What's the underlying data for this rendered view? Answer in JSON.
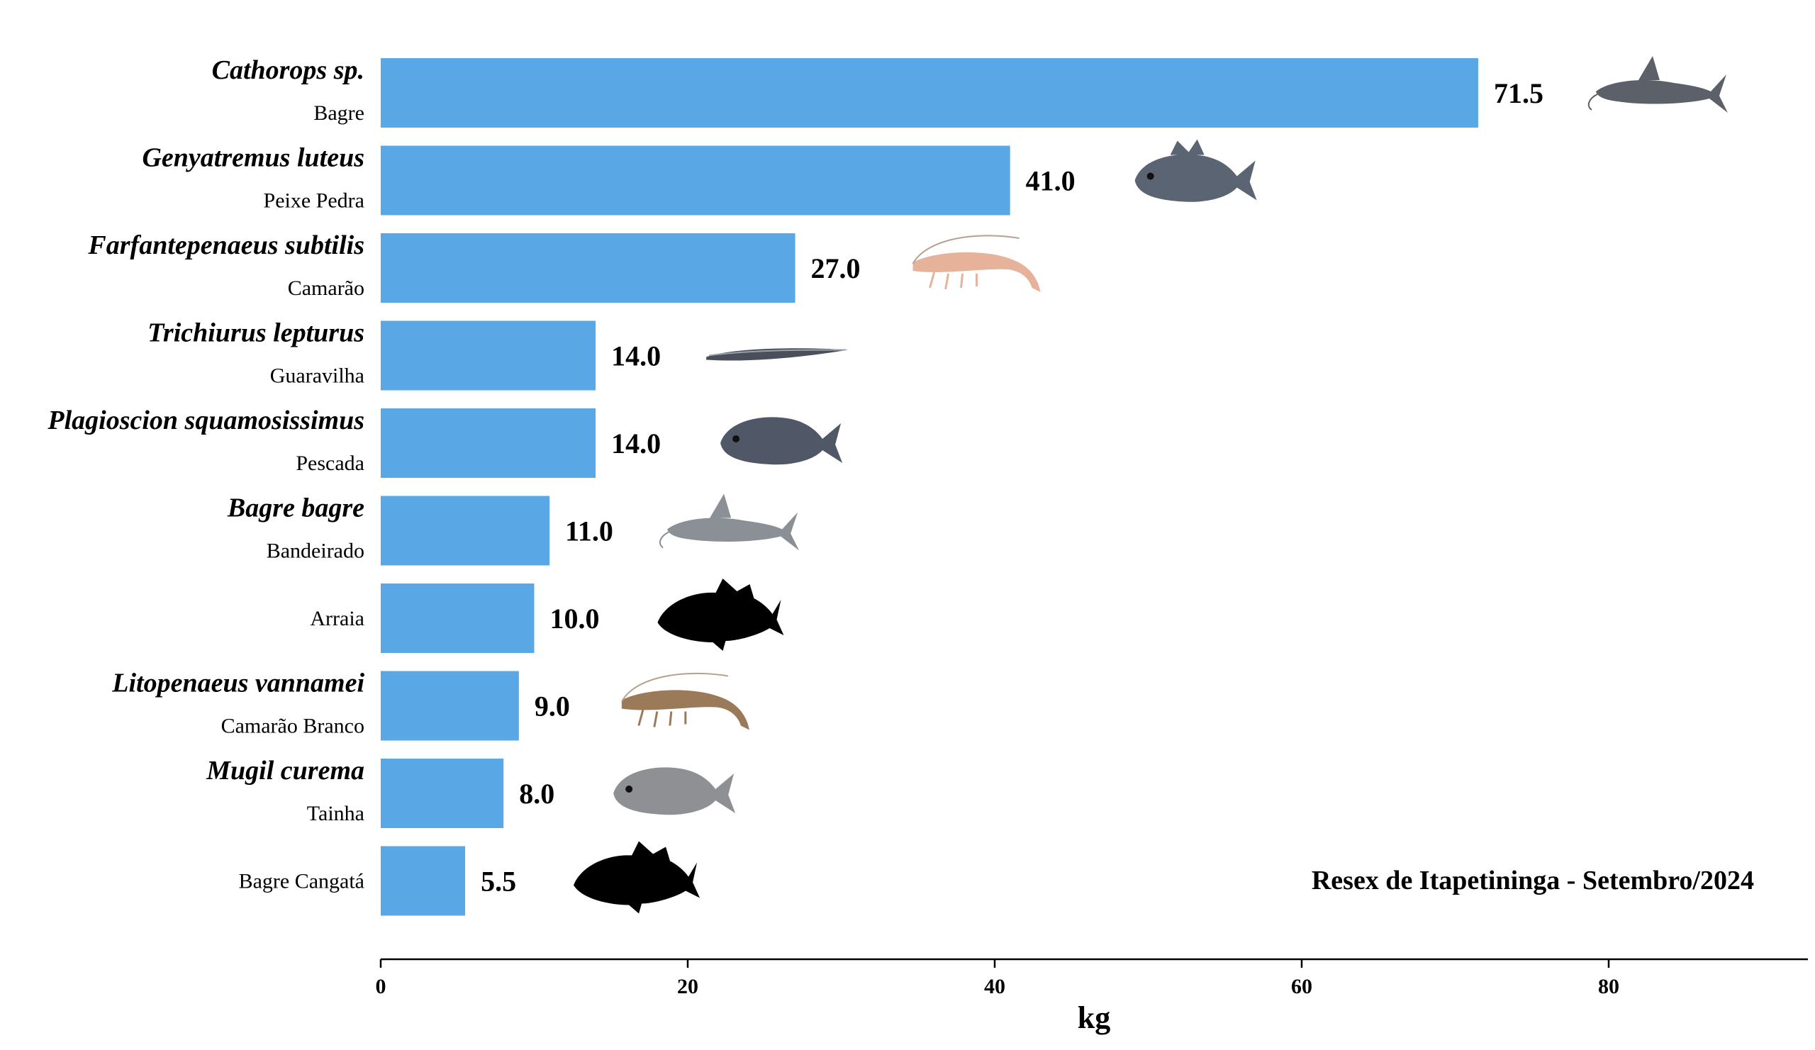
{
  "chart_data": {
    "type": "bar",
    "orientation": "horizontal",
    "xlabel": "kg",
    "xlim": [
      0,
      93
    ],
    "xticks": [
      0,
      20,
      40,
      60,
      80
    ],
    "annotation": "Resex de Itapetininga - Setembro/2024",
    "bar_color": "#5aa7e5",
    "categories": [
      {
        "scientific": "Cathorops sp.",
        "common": "Bagre",
        "value": 71.5,
        "value_label": "71.5",
        "icon": "catfish-photo-icon"
      },
      {
        "scientific": "Genyatremus luteus",
        "common": "Peixe Pedra",
        "value": 41.0,
        "value_label": "41.0",
        "icon": "grunt-fish-photo-icon"
      },
      {
        "scientific": "Farfantepenaeus subtilis",
        "common": "Camarão",
        "value": 27.0,
        "value_label": "27.0",
        "icon": "pink-shrimp-photo-icon"
      },
      {
        "scientific": "Trichiurus lepturus",
        "common": "Guaravilha",
        "value": 14.0,
        "value_label": "14.0",
        "icon": "cutlassfish-photo-icon"
      },
      {
        "scientific": "Plagioscion squamosissimus",
        "common": "Pescada",
        "value": 14.0,
        "value_label": "14.0",
        "icon": "croaker-fish-photo-icon"
      },
      {
        "scientific": "Bagre bagre",
        "common": "Bandeirado",
        "value": 11.0,
        "value_label": "11.0",
        "icon": "gafftopsail-catfish-photo-icon"
      },
      {
        "scientific": "",
        "common": "Arraia",
        "value": 10.0,
        "value_label": "10.0",
        "icon": "fish-silhouette-icon"
      },
      {
        "scientific": "Litopenaeus vannamei",
        "common": "Camarão Branco",
        "value": 9.0,
        "value_label": "9.0",
        "icon": "white-shrimp-photo-icon"
      },
      {
        "scientific": "Mugil curema",
        "common": "Tainha",
        "value": 8.0,
        "value_label": "8.0",
        "icon": "mullet-photo-icon"
      },
      {
        "scientific": "",
        "common": "Bagre Cangatá",
        "value": 5.5,
        "value_label": "5.5",
        "icon": "fish-silhouette-icon"
      }
    ]
  }
}
